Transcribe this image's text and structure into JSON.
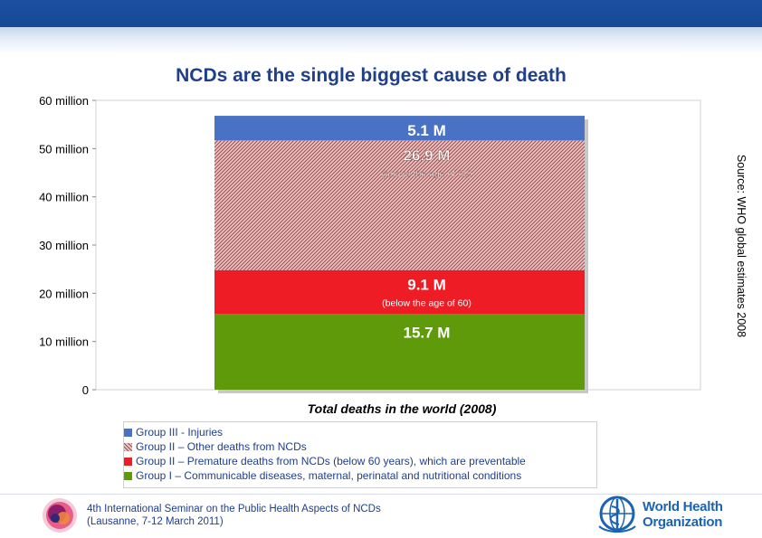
{
  "title": "NCDs are the single biggest cause of death",
  "source_note": "Source: WHO global estimates 2008",
  "chart_data": {
    "type": "bar",
    "stacked": true,
    "title": "NCDs are the single biggest cause of death",
    "xlabel": "Total deaths in the world (2008)",
    "ylabel": "",
    "ylim": [
      0,
      60
    ],
    "y_tick_values": [
      0,
      10,
      20,
      30,
      40,
      50,
      60
    ],
    "y_tick_labels": [
      "0",
      "10 million",
      "20 million",
      "30 million",
      "40 million",
      "50 million",
      "60 million"
    ],
    "grid": false,
    "legend_position": "bottom",
    "series": [
      {
        "name": "Group I – Communicable diseases, maternal, perinatal and nutritional conditions",
        "value": 15.7,
        "label": "15.7 M",
        "sublabel": "",
        "color": "#5f9a0a",
        "pattern": "solid"
      },
      {
        "name": "Group II – Premature deaths from NCDs (below 60 years), which are preventable",
        "value": 9.1,
        "label": "9.1 M",
        "sublabel": "(below the age of 60)",
        "color": "#ee1c24",
        "pattern": "solid"
      },
      {
        "name": "Group II – Other deaths from NCDs",
        "value": 26.9,
        "label": "26.9 M",
        "sublabel": "(above the age of 60)",
        "color": "#c05050",
        "pattern": "hatch"
      },
      {
        "name": "Group III - Injuries",
        "value": 5.1,
        "label": "5.1 M",
        "sublabel": "",
        "color": "#4a72c4",
        "pattern": "solid"
      }
    ]
  },
  "legend": [
    {
      "label": "Group III - Injuries",
      "color": "#4a72c4",
      "pattern": "solid"
    },
    {
      "label": "Group II – Other deaths from NCDs",
      "color": "#c05050",
      "pattern": "hatch"
    },
    {
      "label": "Group II – Premature deaths from NCDs (below 60 years), which are preventable",
      "color": "#ee1c24",
      "pattern": "solid"
    },
    {
      "label": "Group I –  Communicable diseases, maternal, perinatal and nutritional conditions",
      "color": "#5f9a0a",
      "pattern": "solid"
    }
  ],
  "footer": {
    "line1": "4th International Seminar on the Public Health Aspects of NCDs",
    "line2": "(Lausanne, 7-12 March 2011)"
  },
  "who_logo": {
    "line1": "World Health",
    "line2": "Organization"
  }
}
